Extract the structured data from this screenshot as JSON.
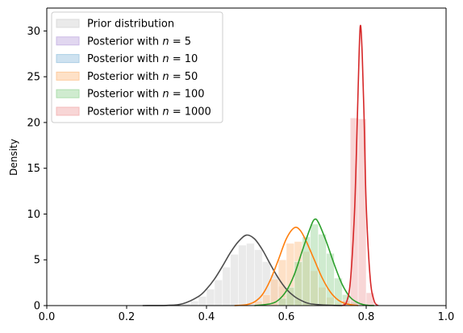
{
  "chart_data": {
    "type": "area",
    "title": "",
    "xlabel": "",
    "ylabel": "Density",
    "xlim": [
      0,
      1
    ],
    "ylim": [
      0,
      32.5
    ],
    "xticks": [
      "0.0",
      "0.2",
      "0.4",
      "0.6",
      "0.8",
      "1.0"
    ],
    "yticks": [
      "0",
      "5",
      "10",
      "15",
      "20",
      "25",
      "30"
    ],
    "grid": false,
    "legend_position": "upper-left",
    "series": [
      {
        "name": "Prior distribution",
        "fill_color": "#d9d9d9",
        "line_color": "#4d4d4d",
        "bins": [
          [
            0.34,
            0.36,
            0.2
          ],
          [
            0.36,
            0.38,
            0.5
          ],
          [
            0.38,
            0.4,
            1.0
          ],
          [
            0.4,
            0.42,
            1.8
          ],
          [
            0.42,
            0.44,
            2.8
          ],
          [
            0.44,
            0.46,
            4.2
          ],
          [
            0.46,
            0.48,
            5.6
          ],
          [
            0.48,
            0.5,
            6.6
          ],
          [
            0.5,
            0.52,
            6.8
          ],
          [
            0.52,
            0.54,
            6.1
          ],
          [
            0.54,
            0.56,
            4.8
          ],
          [
            0.56,
            0.58,
            3.4
          ],
          [
            0.58,
            0.6,
            2.1
          ],
          [
            0.6,
            0.62,
            1.2
          ],
          [
            0.62,
            0.64,
            0.6
          ],
          [
            0.64,
            0.66,
            0.3
          ]
        ],
        "curve": [
          [
            0.24,
            0.0
          ],
          [
            0.3,
            0.02
          ],
          [
            0.34,
            0.2
          ],
          [
            0.38,
            1.0
          ],
          [
            0.4,
            1.8
          ],
          [
            0.42,
            2.9
          ],
          [
            0.44,
            4.3
          ],
          [
            0.46,
            5.8
          ],
          [
            0.48,
            7.0
          ],
          [
            0.5,
            7.7
          ],
          [
            0.52,
            7.3
          ],
          [
            0.54,
            6.1
          ],
          [
            0.56,
            4.5
          ],
          [
            0.58,
            3.0
          ],
          [
            0.6,
            1.8
          ],
          [
            0.62,
            1.0
          ],
          [
            0.64,
            0.5
          ],
          [
            0.66,
            0.2
          ],
          [
            0.7,
            0.05
          ],
          [
            0.74,
            0.0
          ]
        ]
      },
      {
        "name": "Posterior with $n=5$",
        "fill_color": "#c9b6e4",
        "line_color": "#9467bd",
        "bins": [],
        "curve": []
      },
      {
        "name": "Posterior with $n=10$",
        "fill_color": "#a6cbe3",
        "line_color": "#1f77b4",
        "bins": [],
        "curve": []
      },
      {
        "name": "Posterior with $n=50$",
        "fill_color": "#fdc999",
        "line_color": "#ff7f0e",
        "bins": [
          [
            0.52,
            0.54,
            0.5
          ],
          [
            0.54,
            0.56,
            1.2
          ],
          [
            0.56,
            0.58,
            2.9
          ],
          [
            0.58,
            0.6,
            5.0
          ],
          [
            0.6,
            0.62,
            6.8
          ],
          [
            0.62,
            0.64,
            7.0
          ],
          [
            0.64,
            0.66,
            5.9
          ],
          [
            0.66,
            0.68,
            3.8
          ],
          [
            0.68,
            0.7,
            2.0
          ],
          [
            0.7,
            0.72,
            0.9
          ],
          [
            0.72,
            0.74,
            0.3
          ]
        ],
        "curve": [
          [
            0.47,
            0.0
          ],
          [
            0.5,
            0.1
          ],
          [
            0.52,
            0.4
          ],
          [
            0.54,
            1.2
          ],
          [
            0.56,
            2.8
          ],
          [
            0.58,
            5.0
          ],
          [
            0.6,
            7.3
          ],
          [
            0.62,
            8.5
          ],
          [
            0.635,
            8.2
          ],
          [
            0.65,
            7.0
          ],
          [
            0.67,
            5.0
          ],
          [
            0.69,
            3.0
          ],
          [
            0.71,
            1.5
          ],
          [
            0.73,
            0.6
          ],
          [
            0.75,
            0.2
          ],
          [
            0.78,
            0.0
          ]
        ]
      },
      {
        "name": "Posterior with $n=100$",
        "fill_color": "#a8dba8",
        "line_color": "#2ca02c",
        "bins": [
          [
            0.58,
            0.6,
            0.8
          ],
          [
            0.6,
            0.62,
            2.0
          ],
          [
            0.62,
            0.64,
            4.8
          ],
          [
            0.64,
            0.66,
            7.5
          ],
          [
            0.66,
            0.68,
            8.9
          ],
          [
            0.68,
            0.7,
            7.8
          ],
          [
            0.7,
            0.72,
            5.7
          ],
          [
            0.72,
            0.74,
            3.0
          ],
          [
            0.74,
            0.76,
            1.2
          ],
          [
            0.76,
            0.78,
            0.4
          ]
        ],
        "curve": [
          [
            0.52,
            0.0
          ],
          [
            0.56,
            0.2
          ],
          [
            0.58,
            0.6
          ],
          [
            0.6,
            1.6
          ],
          [
            0.62,
            3.4
          ],
          [
            0.64,
            6.0
          ],
          [
            0.66,
            8.5
          ],
          [
            0.67,
            9.4
          ],
          [
            0.68,
            9.1
          ],
          [
            0.7,
            7.0
          ],
          [
            0.72,
            4.5
          ],
          [
            0.74,
            2.3
          ],
          [
            0.76,
            0.9
          ],
          [
            0.78,
            0.3
          ],
          [
            0.8,
            0.05
          ],
          [
            0.82,
            0.0
          ]
        ]
      },
      {
        "name": "Posterior with $n=1000$",
        "fill_color": "#f2b5b5",
        "line_color": "#d62728",
        "bins": [
          [
            0.74,
            0.76,
            0.6
          ],
          [
            0.76,
            0.78,
            20.5
          ],
          [
            0.78,
            0.8,
            20.4
          ],
          [
            0.8,
            0.82,
            1.4
          ]
        ],
        "curve": [
          [
            0.74,
            0.0
          ],
          [
            0.75,
            0.3
          ],
          [
            0.76,
            2.5
          ],
          [
            0.77,
            9.5
          ],
          [
            0.775,
            16.0
          ],
          [
            0.78,
            24.0
          ],
          [
            0.785,
            30.5
          ],
          [
            0.79,
            27.5
          ],
          [
            0.795,
            20.0
          ],
          [
            0.8,
            11.0
          ],
          [
            0.81,
            3.0
          ],
          [
            0.82,
            0.5
          ],
          [
            0.83,
            0.0
          ]
        ]
      }
    ]
  }
}
